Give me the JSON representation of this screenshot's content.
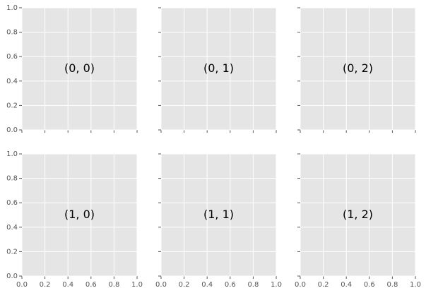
{
  "chart_data": {
    "type": "subplots",
    "rows": 2,
    "cols": 3,
    "sharex": true,
    "sharey": true,
    "xlim": [
      0,
      1
    ],
    "ylim": [
      0,
      1
    ],
    "xticks": [
      {
        "value": 0,
        "label": "0.0"
      },
      0.2,
      0.4,
      0.6,
      0.8,
      {
        "value": 1,
        "label": "1.0"
      }
    ],
    "yticks": [
      {
        "value": 0,
        "label": "0.0"
      },
      0.2,
      0.4,
      0.6,
      0.8,
      {
        "value": 1,
        "label": "1.0"
      }
    ],
    "grid": true,
    "background": "#e5e5e5",
    "panels": [
      {
        "label": "(0, 0)"
      },
      {
        "label": "(0, 1)"
      },
      {
        "label": "(0, 2)"
      },
      {
        "label": "(1, 0)"
      },
      {
        "label": "(1, 1)"
      },
      {
        "label": "(1, 2)"
      }
    ]
  }
}
